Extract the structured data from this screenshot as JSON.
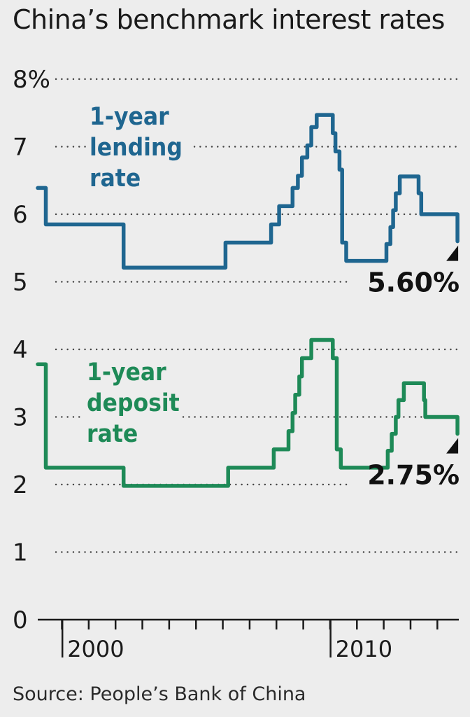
{
  "title": "China’s benchmark interest rates",
  "source": "Source: People’s Bank of China",
  "colors": {
    "lending": "#1f6690",
    "deposit": "#1e8a57",
    "grid": "#444444",
    "axis": "#1a1a1a"
  },
  "chart_data": {
    "type": "line",
    "title": "China’s benchmark interest rates",
    "xlabel": "",
    "ylabel": "",
    "ylim": [
      0,
      8
    ],
    "xlim": [
      1997.1,
      2012.8
    ],
    "yticks": [
      0,
      1,
      2,
      3,
      4,
      5,
      6,
      7,
      8
    ],
    "ytick_labels": [
      "0",
      "1",
      "2",
      "3",
      "4",
      "5",
      "6",
      "7",
      "8%"
    ],
    "xtick_labels": [
      {
        "x": 2000,
        "label": "2000"
      },
      {
        "x": 2010,
        "label": "2010"
      }
    ],
    "grid": true,
    "series": [
      {
        "key": "lending",
        "label_lines": [
          "1-year",
          "lending",
          "rate"
        ],
        "end_label": "5.60%",
        "points": [
          [
            1997.1,
            6.39
          ],
          [
            1997.4,
            6.39
          ],
          [
            1997.4,
            5.85
          ],
          [
            2000.3,
            5.85
          ],
          [
            2000.3,
            5.21
          ],
          [
            2004.1,
            5.21
          ],
          [
            2004.1,
            5.58
          ],
          [
            2005.8,
            5.58
          ],
          [
            2005.8,
            5.85
          ],
          [
            2006.1,
            5.85
          ],
          [
            2006.1,
            6.12
          ],
          [
            2006.6,
            6.12
          ],
          [
            2006.6,
            6.39
          ],
          [
            2006.8,
            6.39
          ],
          [
            2006.8,
            6.57
          ],
          [
            2006.95,
            6.57
          ],
          [
            2006.95,
            6.84
          ],
          [
            2007.15,
            6.84
          ],
          [
            2007.15,
            7.02
          ],
          [
            2007.3,
            7.02
          ],
          [
            2007.3,
            7.29
          ],
          [
            2007.5,
            7.29
          ],
          [
            2007.5,
            7.47
          ],
          [
            2008.1,
            7.47
          ],
          [
            2008.1,
            7.2
          ],
          [
            2008.2,
            7.2
          ],
          [
            2008.2,
            6.93
          ],
          [
            2008.35,
            6.93
          ],
          [
            2008.35,
            6.66
          ],
          [
            2008.45,
            6.66
          ],
          [
            2008.45,
            5.58
          ],
          [
            2008.6,
            5.58
          ],
          [
            2008.6,
            5.31
          ],
          [
            2010.1,
            5.31
          ],
          [
            2010.1,
            5.56
          ],
          [
            2010.25,
            5.56
          ],
          [
            2010.25,
            5.81
          ],
          [
            2010.35,
            5.81
          ],
          [
            2010.35,
            6.06
          ],
          [
            2010.45,
            6.06
          ],
          [
            2010.45,
            6.31
          ],
          [
            2010.6,
            6.31
          ],
          [
            2010.6,
            6.56
          ],
          [
            2011.3,
            6.56
          ],
          [
            2011.3,
            6.31
          ],
          [
            2011.4,
            6.31
          ],
          [
            2011.4,
            6.0
          ],
          [
            2012.75,
            6.0
          ],
          [
            2012.75,
            5.6
          ]
        ]
      },
      {
        "key": "deposit",
        "label_lines": [
          "1-year",
          "deposit",
          "rate"
        ],
        "end_label": "2.75%",
        "points": [
          [
            1997.1,
            3.78
          ],
          [
            1997.4,
            3.78
          ],
          [
            1997.4,
            2.25
          ],
          [
            2000.3,
            2.25
          ],
          [
            2000.3,
            1.98
          ],
          [
            2004.2,
            1.98
          ],
          [
            2004.2,
            2.25
          ],
          [
            2005.9,
            2.25
          ],
          [
            2005.9,
            2.52
          ],
          [
            2006.45,
            2.52
          ],
          [
            2006.45,
            2.79
          ],
          [
            2006.6,
            2.79
          ],
          [
            2006.6,
            3.06
          ],
          [
            2006.7,
            3.06
          ],
          [
            2006.7,
            3.33
          ],
          [
            2006.85,
            3.33
          ],
          [
            2006.85,
            3.6
          ],
          [
            2006.95,
            3.6
          ],
          [
            2006.95,
            3.87
          ],
          [
            2007.3,
            3.87
          ],
          [
            2007.3,
            4.14
          ],
          [
            2008.1,
            4.14
          ],
          [
            2008.1,
            3.87
          ],
          [
            2008.25,
            3.87
          ],
          [
            2008.25,
            2.52
          ],
          [
            2008.4,
            2.52
          ],
          [
            2008.4,
            2.25
          ],
          [
            2010.15,
            2.25
          ],
          [
            2010.15,
            2.5
          ],
          [
            2010.3,
            2.5
          ],
          [
            2010.3,
            2.75
          ],
          [
            2010.45,
            2.75
          ],
          [
            2010.45,
            3.0
          ],
          [
            2010.55,
            3.0
          ],
          [
            2010.55,
            3.25
          ],
          [
            2010.75,
            3.25
          ],
          [
            2010.75,
            3.5
          ],
          [
            2011.5,
            3.5
          ],
          [
            2011.5,
            3.25
          ],
          [
            2011.55,
            3.25
          ],
          [
            2011.55,
            3.0
          ],
          [
            2012.75,
            3.0
          ],
          [
            2012.75,
            2.75
          ]
        ]
      }
    ]
  }
}
